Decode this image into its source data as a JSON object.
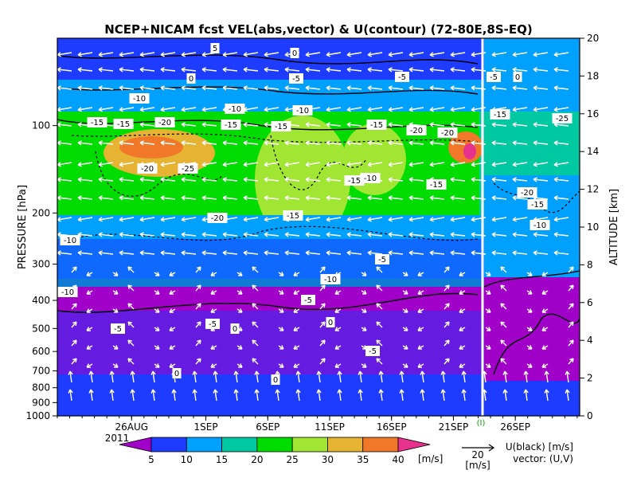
{
  "chart_data": {
    "type": "heatmap",
    "title": "NCEP+NICAM  fcst VEL(abs,vector) & U(contour)   (72-80E,8S-EQ)",
    "ylabel": "PRESSURE [hPa]",
    "y2label": "ALTITUDE [km]",
    "y_axis": "log pressure",
    "ylim": [
      1000,
      50
    ],
    "pressure_ticks": [
      "100",
      "200",
      "300",
      "400",
      "500",
      "600",
      "700",
      "800",
      "900",
      "1000"
    ],
    "altitude_ticks": [
      "0",
      "2",
      "4",
      "6",
      "8",
      "10",
      "12",
      "14",
      "16",
      "18",
      "20"
    ],
    "x_ticks": [
      "26AUG",
      "1SEP",
      "6SEP",
      "11SEP",
      "16SEP",
      "21SEP",
      "26SEP"
    ],
    "year_label": "2011",
    "divider_marker": "(I)",
    "colorbar": {
      "unit": "[m/s]",
      "tick_labels": [
        "5",
        "10",
        "15",
        "20",
        "25",
        "30",
        "35",
        "40"
      ],
      "colors": [
        "#a000c8",
        "#1e3cff",
        "#00a0ff",
        "#00c8a0",
        "#00dc00",
        "#a0e632",
        "#e6b432",
        "#f07828",
        "#e6328c"
      ]
    },
    "vector_reference": {
      "value": "20",
      "unit": "[m/s]"
    },
    "legend": {
      "u_label": "U(black) [m/s]",
      "vector_label": "vector: (U,V)"
    },
    "contour_labels": [
      {
        "text": "5"
      },
      {
        "text": "0"
      },
      {
        "text": "0"
      },
      {
        "text": "-5"
      },
      {
        "text": "-5"
      },
      {
        "text": "-10"
      },
      {
        "text": "-10"
      },
      {
        "text": "-10"
      },
      {
        "text": "-15"
      },
      {
        "text": "-15"
      },
      {
        "text": "-15"
      },
      {
        "text": "-15"
      },
      {
        "text": "-20"
      },
      {
        "text": "-20"
      },
      {
        "text": "-20"
      },
      {
        "text": "-20"
      },
      {
        "text": "-25"
      },
      {
        "text": "-15"
      },
      {
        "text": "-10"
      },
      {
        "text": "-15"
      },
      {
        "text": "-15"
      },
      {
        "text": "-20"
      },
      {
        "text": "-15"
      },
      {
        "text": "-10"
      },
      {
        "text": "-10"
      },
      {
        "text": "-5"
      },
      {
        "text": "-5"
      },
      {
        "text": "-5"
      },
      {
        "text": "-5"
      },
      {
        "text": "0"
      },
      {
        "text": "0"
      },
      {
        "text": "-5"
      },
      {
        "text": "0"
      },
      {
        "text": "0"
      },
      {
        "text": "-10"
      },
      {
        "text": "-15"
      },
      {
        "text": "-25"
      },
      {
        "text": "-20"
      },
      {
        "text": "-15"
      },
      {
        "text": "-10"
      },
      {
        "text": "-5"
      },
      {
        "text": "0"
      }
    ]
  }
}
